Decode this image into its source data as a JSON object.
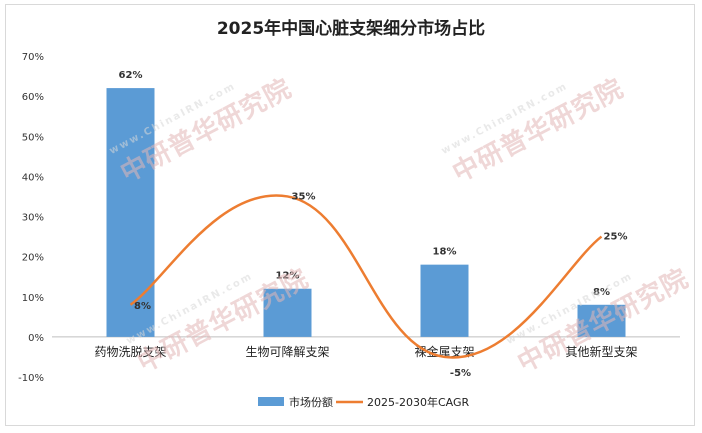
{
  "chart_data": {
    "type": "bar",
    "title": "2025年中国心脏支架细分市场占比",
    "categories": [
      "药物洗脱支架",
      "生物可降解支架",
      "裸金属支架",
      "其他新型支架"
    ],
    "series": [
      {
        "name": "市场份额",
        "type": "bar",
        "color": "#5b9bd5",
        "values": [
          62,
          12,
          18,
          8
        ],
        "labels": [
          "62%",
          "12%",
          "18%",
          "8%"
        ]
      },
      {
        "name": "2025-2030年CAGR",
        "type": "line",
        "smooth": true,
        "color": "#ed7d31",
        "values": [
          8,
          35,
          -5,
          25
        ],
        "labels": [
          "8%",
          "35%",
          "-5%",
          "25%"
        ]
      }
    ],
    "ylim": [
      -10,
      70
    ],
    "yticks": [
      "-10%",
      "0%",
      "10%",
      "20%",
      "30%",
      "40%",
      "50%",
      "60%",
      "70%"
    ],
    "grid": false,
    "legend": "bottom"
  },
  "watermark": {
    "text": "中研普华研究院",
    "url": "www.ChinaIRN.com"
  }
}
